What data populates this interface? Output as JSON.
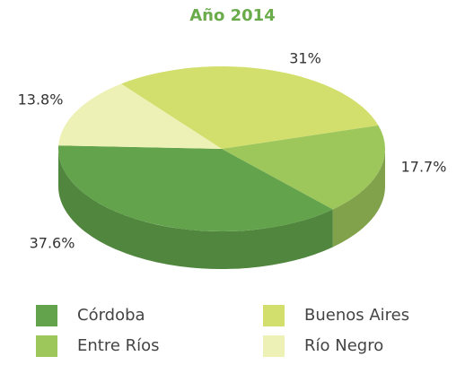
{
  "chart_data": {
    "type": "pie",
    "title": "Año 2014",
    "categories": [
      "Córdoba",
      "Buenos Aires",
      "Entre Ríos",
      "Río Negro"
    ],
    "values": [
      37.6,
      31,
      17.7,
      13.8
    ],
    "value_labels": [
      "37.6%",
      "31%",
      "17.7%",
      "13.8%"
    ],
    "colors": [
      "#62a34b",
      "#d3df6c",
      "#9dc65b",
      "#eef1b6"
    ]
  }
}
